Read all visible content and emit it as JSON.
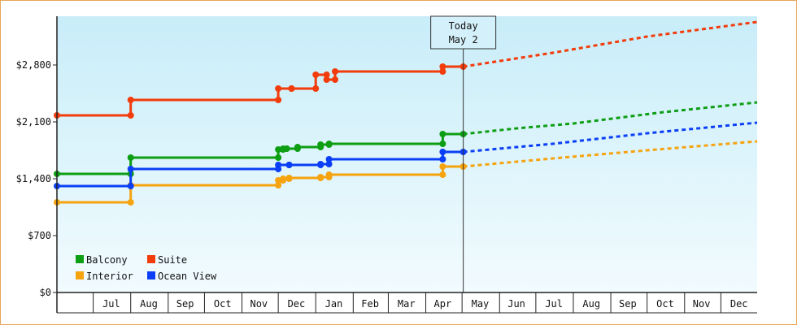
{
  "chart_data": {
    "type": "line",
    "x_unit": "date",
    "today_label": [
      "Today",
      "May 2"
    ],
    "today_date": "2024-05-02",
    "x_range": [
      "2023-06-01",
      "2024-12-31"
    ],
    "month_labels": [
      "Jul",
      "Aug",
      "Sep",
      "Oct",
      "Nov",
      "Dec",
      "Jan",
      "Feb",
      "Mar",
      "Apr",
      "May",
      "Jun",
      "Jul",
      "Aug",
      "Sep",
      "Oct",
      "Nov",
      "Dec"
    ],
    "month_label_dates": [
      "2023-07-16",
      "2023-08-16",
      "2023-09-15",
      "2023-10-16",
      "2023-11-15",
      "2023-12-16",
      "2024-01-16",
      "2024-02-15",
      "2024-03-16",
      "2024-04-15",
      "2024-05-16",
      "2024-06-15",
      "2024-07-16",
      "2024-08-16",
      "2024-09-15",
      "2024-10-16",
      "2024-11-15",
      "2024-12-16"
    ],
    "month_boundaries": [
      "2023-07-01",
      "2023-08-01",
      "2023-09-01",
      "2023-10-01",
      "2023-11-01",
      "2023-12-01",
      "2024-01-01",
      "2024-02-01",
      "2024-03-01",
      "2024-04-01",
      "2024-05-01",
      "2024-06-01",
      "2024-07-01",
      "2024-08-01",
      "2024-09-01",
      "2024-10-01",
      "2024-11-01",
      "2024-12-01"
    ],
    "y_ticks": [
      0,
      700,
      1400,
      2100,
      2800
    ],
    "y_tick_labels": [
      "$0",
      "$700",
      "$1,400",
      "$2,100",
      "$2,800"
    ],
    "ylim": [
      0,
      3400
    ],
    "legend_position": "bottom-left",
    "series": [
      {
        "name": "Balcony",
        "color": "#0d9e13",
        "history": [
          [
            "2023-06-01",
            1460
          ],
          [
            "2023-08-01",
            1460
          ],
          [
            "2023-08-01",
            1660
          ],
          [
            "2023-12-01",
            1660
          ],
          [
            "2023-12-01",
            1760
          ],
          [
            "2023-12-05",
            1760
          ],
          [
            "2023-12-05",
            1770
          ],
          [
            "2023-12-08",
            1770
          ],
          [
            "2023-12-08",
            1770
          ],
          [
            "2023-12-17",
            1770
          ],
          [
            "2023-12-17",
            1790
          ],
          [
            "2024-01-05",
            1790
          ],
          [
            "2024-01-05",
            1820
          ],
          [
            "2024-01-12",
            1820
          ],
          [
            "2024-01-12",
            1830
          ],
          [
            "2024-04-15",
            1830
          ],
          [
            "2024-04-15",
            1950
          ],
          [
            "2024-05-02",
            1950
          ]
        ],
        "forecast": [
          [
            "2024-05-02",
            1950
          ],
          [
            "2024-06-15",
            2020
          ],
          [
            "2024-08-01",
            2080
          ],
          [
            "2024-10-15",
            2220
          ],
          [
            "2024-12-31",
            2340
          ]
        ]
      },
      {
        "name": "Suite",
        "color": "#f23c0c",
        "history": [
          [
            "2023-06-01",
            2180
          ],
          [
            "2023-08-01",
            2180
          ],
          [
            "2023-08-01",
            2370
          ],
          [
            "2023-12-01",
            2370
          ],
          [
            "2023-12-01",
            2510
          ],
          [
            "2023-12-12",
            2510
          ],
          [
            "2023-12-12",
            2510
          ],
          [
            "2024-01-01",
            2510
          ],
          [
            "2024-01-01",
            2680
          ],
          [
            "2024-01-10",
            2680
          ],
          [
            "2024-01-10",
            2620
          ],
          [
            "2024-01-17",
            2620
          ],
          [
            "2024-01-17",
            2720
          ],
          [
            "2024-04-15",
            2720
          ],
          [
            "2024-04-15",
            2780
          ],
          [
            "2024-05-02",
            2780
          ]
        ],
        "forecast": [
          [
            "2024-05-02",
            2780
          ],
          [
            "2024-07-15",
            2950
          ],
          [
            "2024-10-01",
            3150
          ],
          [
            "2024-12-31",
            3330
          ]
        ]
      },
      {
        "name": "Interior",
        "color": "#f5a30f",
        "history": [
          [
            "2023-06-01",
            1110
          ],
          [
            "2023-08-01",
            1110
          ],
          [
            "2023-08-01",
            1320
          ],
          [
            "2023-12-01",
            1320
          ],
          [
            "2023-12-01",
            1380
          ],
          [
            "2023-12-05",
            1380
          ],
          [
            "2023-12-05",
            1400
          ],
          [
            "2023-12-10",
            1400
          ],
          [
            "2023-12-10",
            1410
          ],
          [
            "2024-01-05",
            1410
          ],
          [
            "2024-01-05",
            1420
          ],
          [
            "2024-01-12",
            1420
          ],
          [
            "2024-01-12",
            1450
          ],
          [
            "2024-04-15",
            1450
          ],
          [
            "2024-04-15",
            1550
          ],
          [
            "2024-05-02",
            1550
          ]
        ],
        "forecast": [
          [
            "2024-05-02",
            1550
          ],
          [
            "2024-07-15",
            1650
          ],
          [
            "2024-10-01",
            1750
          ],
          [
            "2024-12-31",
            1860
          ]
        ]
      },
      {
        "name": "Ocean View",
        "color": "#0b3ff5",
        "history": [
          [
            "2023-06-01",
            1310
          ],
          [
            "2023-08-01",
            1310
          ],
          [
            "2023-08-01",
            1520
          ],
          [
            "2023-12-01",
            1520
          ],
          [
            "2023-12-01",
            1570
          ],
          [
            "2023-12-10",
            1570
          ],
          [
            "2023-12-10",
            1570
          ],
          [
            "2024-01-05",
            1570
          ],
          [
            "2024-01-05",
            1580
          ],
          [
            "2024-01-12",
            1580
          ],
          [
            "2024-01-12",
            1640
          ],
          [
            "2024-04-15",
            1640
          ],
          [
            "2024-04-15",
            1730
          ],
          [
            "2024-05-02",
            1730
          ]
        ],
        "forecast": [
          [
            "2024-05-02",
            1730
          ],
          [
            "2024-07-15",
            1830
          ],
          [
            "2024-10-01",
            1960
          ],
          [
            "2024-12-31",
            2090
          ]
        ]
      }
    ]
  }
}
